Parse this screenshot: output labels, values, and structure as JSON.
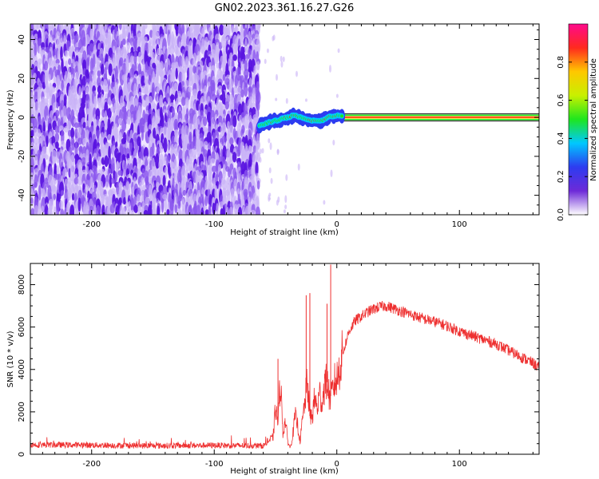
{
  "title": "GN02.2023.361.16.27.G26",
  "chart_data": [
    {
      "type": "heatmap",
      "xlabel": "Height of straight line (km)",
      "ylabel": "Frequency (Hz)",
      "xlim": [
        -250,
        165
      ],
      "ylim": [
        -50,
        48
      ],
      "xticks": [
        -200,
        -100,
        0,
        100
      ],
      "yticks": [
        -40,
        -20,
        0,
        20,
        40
      ],
      "grid": false,
      "noise_region_x": [
        -250,
        -63
      ],
      "sparse_region_x": [
        -63,
        5
      ],
      "tone_start_x": 5,
      "tone_frequency_hz": 0,
      "trace_x": [
        -63,
        -58,
        -52,
        -46,
        -40,
        -35,
        -30,
        -25,
        -20,
        -15,
        -10,
        -5,
        0,
        5
      ],
      "trace_y": [
        -4.5,
        -3.0,
        -2.0,
        -1.0,
        0.0,
        1.0,
        0.0,
        -1.0,
        -1.5,
        -2.0,
        -1.0,
        0.5,
        1.0,
        0.5
      ],
      "colorbar": {
        "label": "Normalized spectral amplitude",
        "range": [
          0,
          1
        ],
        "ticks": [
          "0.0",
          "0.2",
          "0.4",
          "0.6",
          "0.8"
        ],
        "stops": [
          "#ffffff",
          "#6d2ad8",
          "#2d3cf0",
          "#00c8ff",
          "#1ee61e",
          "#c8f000",
          "#ffc800",
          "#ff2a1e",
          "#ff0a8c"
        ]
      }
    },
    {
      "type": "line",
      "xlabel": "Height of straight line (km)",
      "ylabel": "SNR (10 * v/v)",
      "xlim": [
        -250,
        165
      ],
      "ylim": [
        0,
        9000
      ],
      "xticks": [
        -200,
        -100,
        0,
        100
      ],
      "yticks": [
        0,
        2000,
        4000,
        6000,
        8000
      ],
      "grid": false,
      "color": "#ee3030",
      "series": [
        {
          "x": [
            -250,
            -200,
            -150,
            -100,
            -60,
            -52,
            -50,
            -48,
            -46,
            -44,
            -42,
            -40,
            -38,
            -36,
            -34,
            -32,
            -30,
            -28,
            -26,
            -24,
            -22,
            -20,
            -18,
            -16,
            -14,
            -12,
            -10,
            -8,
            -6,
            -4,
            -2,
            0,
            5,
            10,
            15,
            20,
            25,
            30,
            35,
            40,
            45,
            50,
            55,
            60,
            70,
            80,
            90,
            100,
            110,
            120,
            130,
            140,
            150,
            160,
            165
          ],
          "y": [
            450,
            430,
            400,
            420,
            400,
            800,
            2200,
            1500,
            3600,
            1000,
            1600,
            600,
            300,
            900,
            1800,
            1400,
            600,
            1600,
            2500,
            3400,
            1800,
            1800,
            2700,
            2100,
            2900,
            2400,
            3300,
            3400,
            2700,
            2800,
            3400,
            3500,
            4800,
            5800,
            6300,
            6500,
            6700,
            6850,
            6950,
            7000,
            6900,
            6800,
            6700,
            6600,
            6400,
            6250,
            6050,
            5800,
            5600,
            5400,
            5200,
            4900,
            4600,
            4300,
            4100
          ]
        }
      ],
      "spikes": [
        {
          "x": -48,
          "y": 4500
        },
        {
          "x": -25,
          "y": 7500
        },
        {
          "x": -22,
          "y": 7600
        },
        {
          "x": -8,
          "y": 7100
        },
        {
          "x": -5,
          "y": 8950
        }
      ]
    }
  ]
}
